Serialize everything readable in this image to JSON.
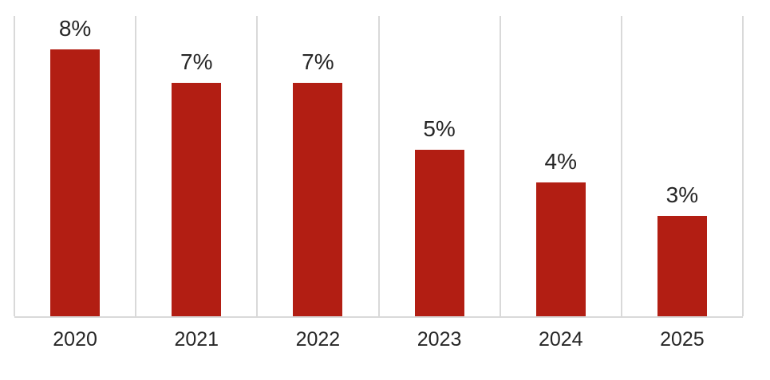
{
  "chart_data": {
    "type": "bar",
    "title": "",
    "xlabel": "",
    "ylabel": "",
    "categories": [
      "2020",
      "2021",
      "2022",
      "2023",
      "2024",
      "2025"
    ],
    "values": [
      8,
      7,
      7,
      5,
      4,
      3
    ],
    "data_labels": [
      "8%",
      "7%",
      "7%",
      "5%",
      "4%",
      "3%"
    ],
    "unit": "%",
    "ylim": [
      0,
      9
    ],
    "grid": "vertical-only",
    "legend_position": "none",
    "colors": {
      "bar": "#B21E13",
      "gridline": "#D9D9D9",
      "axis_line": "#D9D9D9",
      "data_label_text": "#262626",
      "axis_label_text": "#262626",
      "background": "#FFFFFF"
    }
  }
}
